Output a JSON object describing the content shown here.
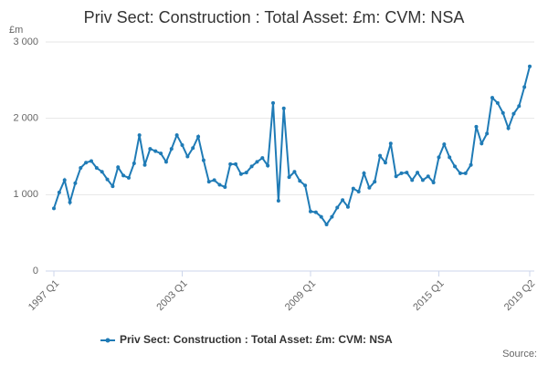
{
  "chart_data": {
    "type": "line",
    "title": "Priv Sect: Construction : Total Asset: £m: CVM: NSA",
    "y_label": "£m",
    "source": "Source:",
    "categories": [
      "1997 Q1",
      null,
      null,
      null,
      null,
      null,
      null,
      null,
      null,
      null,
      null,
      null,
      null,
      null,
      null,
      null,
      null,
      null,
      null,
      null,
      null,
      null,
      null,
      null,
      "2003 Q1",
      null,
      null,
      null,
      null,
      null,
      null,
      null,
      null,
      null,
      null,
      null,
      null,
      null,
      null,
      null,
      null,
      null,
      null,
      null,
      null,
      null,
      null,
      null,
      "2009 Q1",
      null,
      null,
      null,
      null,
      null,
      null,
      null,
      null,
      null,
      null,
      null,
      null,
      null,
      null,
      null,
      null,
      null,
      null,
      null,
      null,
      null,
      null,
      null,
      "2015 Q1",
      null,
      null,
      null,
      null,
      null,
      null,
      null,
      null,
      null,
      null,
      null,
      null,
      null,
      null,
      null,
      null,
      "2019 Q2"
    ],
    "series": [
      {
        "name": "Priv Sect: Construction : Total Asset: £m: CVM: NSA",
        "color": "#1f7bb6",
        "values": [
          820,
          1030,
          1190,
          900,
          1150,
          1350,
          1420,
          1440,
          1350,
          1300,
          1200,
          1110,
          1360,
          1250,
          1220,
          1410,
          1780,
          1390,
          1600,
          1570,
          1540,
          1430,
          1600,
          1780,
          1650,
          1500,
          1610,
          1760,
          1450,
          1170,
          1190,
          1130,
          1100,
          1400,
          1400,
          1270,
          1290,
          1370,
          1430,
          1480,
          1380,
          2200,
          920,
          2130,
          1230,
          1300,
          1180,
          1120,
          780,
          770,
          710,
          610,
          710,
          830,
          930,
          840,
          1080,
          1040,
          1280,
          1090,
          1170,
          1510,
          1420,
          1670,
          1240,
          1280,
          1290,
          1190,
          1290,
          1190,
          1240,
          1160,
          1490,
          1660,
          1490,
          1370,
          1280,
          1280,
          1390,
          1890,
          1670,
          1800,
          2270,
          2200,
          2070,
          1870,
          2060,
          2160,
          2410,
          2680
        ]
      }
    ],
    "ylim": [
      0,
      3000
    ],
    "yticks": [
      {
        "value": 0,
        "label": "0"
      },
      {
        "value": 1000,
        "label": "1 000"
      },
      {
        "value": 2000,
        "label": "2 000"
      },
      {
        "value": 3000,
        "label": "3 000"
      }
    ],
    "grid": true
  }
}
